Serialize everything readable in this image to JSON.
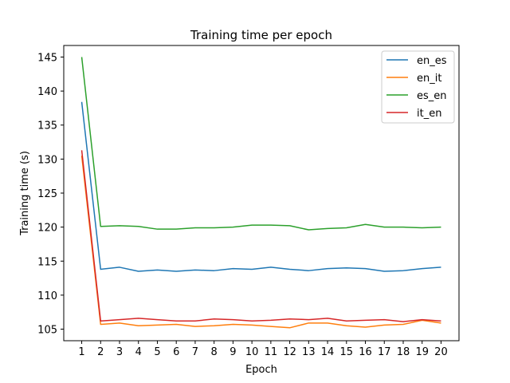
{
  "chart_data": {
    "type": "line",
    "title": "Training time per epoch",
    "xlabel": "Epoch",
    "ylabel": "Training time (s)",
    "x": [
      1,
      2,
      3,
      4,
      5,
      6,
      7,
      8,
      9,
      10,
      11,
      12,
      13,
      14,
      15,
      16,
      17,
      18,
      19,
      20
    ],
    "xlim": [
      0.05,
      20.95
    ],
    "ylim": [
      103.3,
      146.7
    ],
    "yticks": [
      105,
      110,
      115,
      120,
      125,
      130,
      135,
      140,
      145
    ],
    "grid": false,
    "legend_position": "top-right",
    "series": [
      {
        "name": "en_es",
        "color": "#1f77b4",
        "values": [
          138.4,
          113.8,
          114.1,
          113.5,
          113.7,
          113.5,
          113.7,
          113.6,
          113.9,
          113.8,
          114.1,
          113.8,
          113.6,
          113.9,
          114.0,
          113.9,
          113.5,
          113.6,
          113.9,
          114.1
        ]
      },
      {
        "name": "en_it",
        "color": "#ff7f0e",
        "values": [
          130.5,
          105.7,
          105.9,
          105.5,
          105.6,
          105.7,
          105.4,
          105.5,
          105.7,
          105.6,
          105.4,
          105.2,
          105.9,
          105.9,
          105.5,
          105.3,
          105.6,
          105.7,
          106.3,
          105.9
        ]
      },
      {
        "name": "es_en",
        "color": "#2ca02c",
        "values": [
          145.0,
          120.1,
          120.2,
          120.1,
          119.7,
          119.7,
          119.9,
          119.9,
          120.0,
          120.3,
          120.3,
          120.2,
          119.6,
          119.8,
          119.9,
          120.4,
          120.0,
          120.0,
          119.9,
          120.0
        ]
      },
      {
        "name": "it_en",
        "color": "#d62728",
        "values": [
          131.3,
          106.2,
          106.4,
          106.6,
          106.4,
          106.2,
          106.2,
          106.5,
          106.4,
          106.2,
          106.3,
          106.5,
          106.4,
          106.6,
          106.2,
          106.3,
          106.4,
          106.1,
          106.4,
          106.2
        ]
      }
    ]
  }
}
